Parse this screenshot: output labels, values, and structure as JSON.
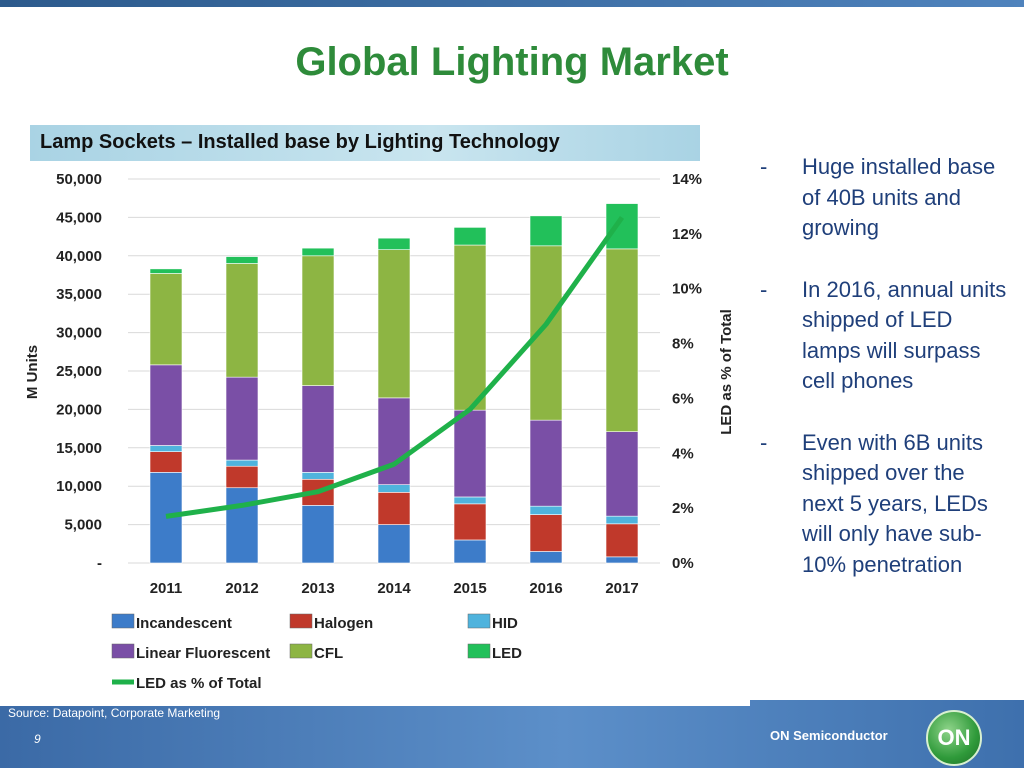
{
  "slide": {
    "title": "Global Lighting Market",
    "source": "Source: Datapoint, Corporate Marketing",
    "page_number": "9",
    "brand": "ON Semiconductor",
    "logo_text": "ON"
  },
  "bullets": [
    {
      "mark": "-",
      "text": "Huge installed base of 40B units and growing"
    },
    {
      "mark": "-",
      "text": "In 2016, annual units shipped of LED lamps will surpass cell phones"
    },
    {
      "mark": "-",
      "text": "Even with 6B units shipped over the next 5 years, LEDs will only have sub-10% penetration"
    }
  ],
  "colors": {
    "title": "#2e8b3a",
    "bullet_text": "#1f3f7a",
    "Incandescent": "#3d7cc9",
    "Halogen": "#c0392b",
    "HID": "#4fb3dd",
    "Linear Fluorescent": "#7a4fa6",
    "CFL": "#8db543",
    "LED": "#22c05a",
    "LED_line": "#1fb14a"
  },
  "chart_data": {
    "type": "bar",
    "stacked": true,
    "title": "Lamp Sockets – Installed base by Lighting Technology",
    "categories": [
      "2011",
      "2012",
      "2013",
      "2014",
      "2015",
      "2016",
      "2017"
    ],
    "ylabel": "M Units",
    "y2label": "LED as % of Total",
    "ylim": [
      0,
      50000
    ],
    "y2lim": [
      0,
      14
    ],
    "yticks": [
      "-",
      "5,000",
      "10,000",
      "15,000",
      "20,000",
      "25,000",
      "30,000",
      "35,000",
      "40,000",
      "45,000",
      "50,000"
    ],
    "y2ticks": [
      "0%",
      "2%",
      "4%",
      "6%",
      "8%",
      "10%",
      "12%",
      "14%"
    ],
    "grid": true,
    "legend_position": "bottom",
    "series": [
      {
        "name": "Incandescent",
        "values": [
          11800,
          9800,
          7500,
          5000,
          3000,
          1500,
          800
        ]
      },
      {
        "name": "Halogen",
        "values": [
          2700,
          2800,
          3400,
          4200,
          4700,
          4800,
          4300
        ]
      },
      {
        "name": "HID",
        "values": [
          800,
          800,
          900,
          1000,
          900,
          1100,
          1000
        ]
      },
      {
        "name": "Linear Fluorescent",
        "values": [
          10500,
          10800,
          11300,
          11300,
          11300,
          11200,
          11000
        ]
      },
      {
        "name": "CFL",
        "values": [
          11900,
          14800,
          16900,
          19300,
          21500,
          22700,
          23800
        ]
      },
      {
        "name": "LED",
        "values": [
          600,
          900,
          1000,
          1500,
          2300,
          3900,
          5900
        ]
      }
    ],
    "line_series": {
      "name": "LED as % of Total",
      "values": [
        1.7,
        2.1,
        2.6,
        3.6,
        5.6,
        8.7,
        12.6
      ]
    },
    "legend": [
      "Incandescent",
      "Halogen",
      "HID",
      "Linear Fluorescent",
      "CFL",
      "LED",
      "LED as % of Total"
    ]
  }
}
